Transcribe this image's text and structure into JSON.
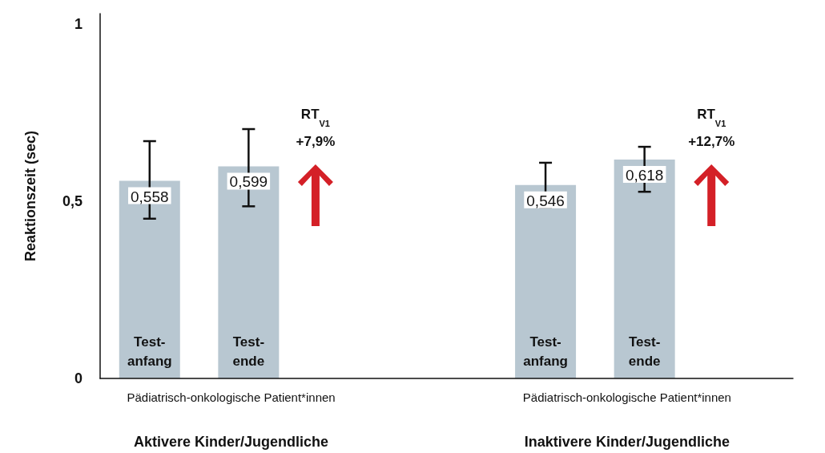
{
  "chart_data": {
    "type": "bar",
    "ylabel": "Reaktionszeit (sec)",
    "categories": [
      "Test-\nanfang",
      "Test-\nende",
      null,
      null,
      "Test-\nanfang",
      "Test-\nende",
      null
    ],
    "values": [
      0.558,
      0.599,
      null,
      null,
      0.546,
      0.618,
      null
    ],
    "value_labels": [
      "0,558",
      "0,599",
      null,
      null,
      "0,546",
      "0,618",
      null
    ],
    "errors": [
      [
        0.451,
        0.67
      ],
      [
        0.486,
        0.704
      ],
      null,
      null,
      [
        0.483,
        0.609
      ],
      [
        0.527,
        0.654
      ],
      null
    ],
    "color": "#b8c7d1",
    "ylim": [
      0,
      1.03
    ],
    "yticks": [
      0,
      {
        "value": 0.5,
        "label": "0,5"
      },
      1
    ],
    "grid": false,
    "annotations": [
      "RT$_{V1}$\n+7,9%",
      "RT$_{V1}$\n+12,7%",
      "Pädiatrisch-onkologische Patient*innen",
      "Aktivere Kinder/Jugendliche",
      "Pädiatrisch-onkologische Patient*innen",
      "Inaktivere Kinder/Jugendliche"
    ]
  }
}
